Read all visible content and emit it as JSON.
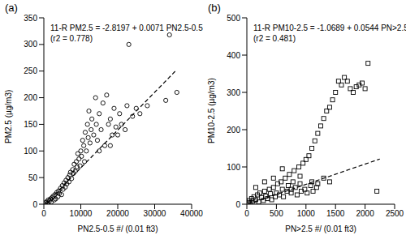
{
  "chart_data": [
    {
      "type": "scatter",
      "title": "(a)",
      "annotations": [
        "11-R PM2.5 = -2.8197 + 0.0071 PN2.5-0.5",
        "(r2 = 0.778)"
      ],
      "x_label": "PN2.5-0.5 #/ (0.01 ft3)",
      "y_label": "PM2.5 (µg/m3)",
      "xlim": [
        0,
        40000
      ],
      "xticks": [
        0,
        10000,
        20000,
        30000,
        40000
      ],
      "ylim": [
        0,
        350
      ],
      "yticks": [
        0,
        50,
        100,
        150,
        200,
        250,
        300,
        350
      ],
      "color": "#000000",
      "series": [
        {
          "type": "scatter",
          "marker": "circle",
          "color": "#000000",
          "x": [
            500,
            800,
            1000,
            1200,
            1500,
            1800,
            2000,
            2200,
            2500,
            2800,
            3000,
            3200,
            3500,
            3800,
            4000,
            4200,
            4500,
            4800,
            5000,
            5200,
            5500,
            5800,
            6000,
            6200,
            6500,
            6800,
            7000,
            7200,
            7500,
            7800,
            8000,
            8200,
            8500,
            8800,
            9000,
            9200,
            9500,
            9800,
            10000,
            10200,
            10500,
            10800,
            11000,
            11200,
            11500,
            11800,
            12000,
            12200,
            12500,
            12800,
            13000,
            13500,
            14000,
            14200,
            14500,
            15000,
            15000,
            15500,
            16000,
            16500,
            17000,
            17500,
            18000,
            18000,
            18500,
            19000,
            19500,
            20000,
            20500,
            21000,
            22000,
            22500,
            23000,
            24000,
            25000,
            26000,
            28000,
            33000,
            34000,
            36000
          ],
          "values": [
            3,
            5,
            2,
            8,
            6,
            10,
            4,
            12,
            15,
            8,
            18,
            10,
            22,
            14,
            25,
            20,
            30,
            18,
            35,
            28,
            40,
            32,
            45,
            38,
            50,
            42,
            55,
            60,
            48,
            65,
            58,
            75,
            62,
            80,
            70,
            95,
            85,
            72,
            100,
            90,
            120,
            110,
            80,
            135,
            100,
            150,
            125,
            175,
            115,
            140,
            160,
            130,
            200,
            150,
            120,
            170,
            100,
            140,
            190,
            110,
            205,
            150,
            160,
            110,
            130,
            180,
            145,
            130,
            170,
            150,
            140,
            185,
            300,
            165,
            180,
            170,
            185,
            195,
            318,
            210
          ]
        },
        {
          "type": "line",
          "line_style": "dashed",
          "color": "#000000",
          "x": [
            400,
            36000
          ],
          "values": [
            0,
            252.8
          ]
        }
      ]
    },
    {
      "type": "scatter",
      "title": "(b)",
      "annotations": [
        "11-R PM10-2.5 = -1.0689 + 0.0544 PN>2.5",
        "(r2 = 0.481)"
      ],
      "x_label": "PN>2.5 #/ (0.01 ft3)",
      "y_label": "PM10-2.5 (µg/m3)",
      "xlim": [
        0,
        2500
      ],
      "xticks": [
        0,
        500,
        1000,
        1500,
        2000,
        2500
      ],
      "ylim": [
        0,
        500
      ],
      "yticks": [
        0,
        100,
        200,
        300,
        400,
        500
      ],
      "color": "#000000",
      "series": [
        {
          "type": "scatter",
          "marker": "square",
          "color": "#000000",
          "x": [
            20,
            40,
            60,
            80,
            100,
            120,
            150,
            180,
            200,
            220,
            250,
            280,
            300,
            320,
            350,
            380,
            400,
            420,
            450,
            480,
            500,
            520,
            550,
            580,
            600,
            620,
            650,
            680,
            700,
            720,
            750,
            780,
            800,
            820,
            850,
            880,
            900,
            920,
            950,
            980,
            1000,
            1020,
            1050,
            1080,
            1100,
            1120,
            1150,
            1180,
            1200,
            1250,
            1300,
            1350,
            1400,
            1450,
            1500,
            1550,
            1600,
            1650,
            1700,
            1750,
            1800,
            1850,
            1900,
            1950,
            2000,
            2050,
            1100,
            1200,
            1300,
            1400,
            2200,
            150,
            300,
            450,
            600,
            750,
            900
          ],
          "values": [
            5,
            10,
            3,
            15,
            8,
            20,
            12,
            25,
            6,
            30,
            18,
            10,
            35,
            22,
            15,
            40,
            28,
            12,
            45,
            20,
            30,
            55,
            25,
            60,
            40,
            20,
            70,
            35,
            50,
            80,
            30,
            60,
            90,
            45,
            25,
            100,
            55,
            35,
            110,
            40,
            120,
            30,
            130,
            50,
            150,
            35,
            170,
            45,
            190,
            210,
            230,
            250,
            260,
            280,
            300,
            330,
            320,
            340,
            330,
            310,
            300,
            315,
            320,
            325,
            310,
            378,
            60,
            55,
            70,
            60,
            35,
            45,
            60,
            70,
            95,
            40,
            75
          ]
        },
        {
          "type": "line",
          "line_style": "dashed",
          "color": "#000000",
          "x": [
            20,
            2250
          ],
          "values": [
            0,
            121.3
          ]
        }
      ]
    }
  ]
}
